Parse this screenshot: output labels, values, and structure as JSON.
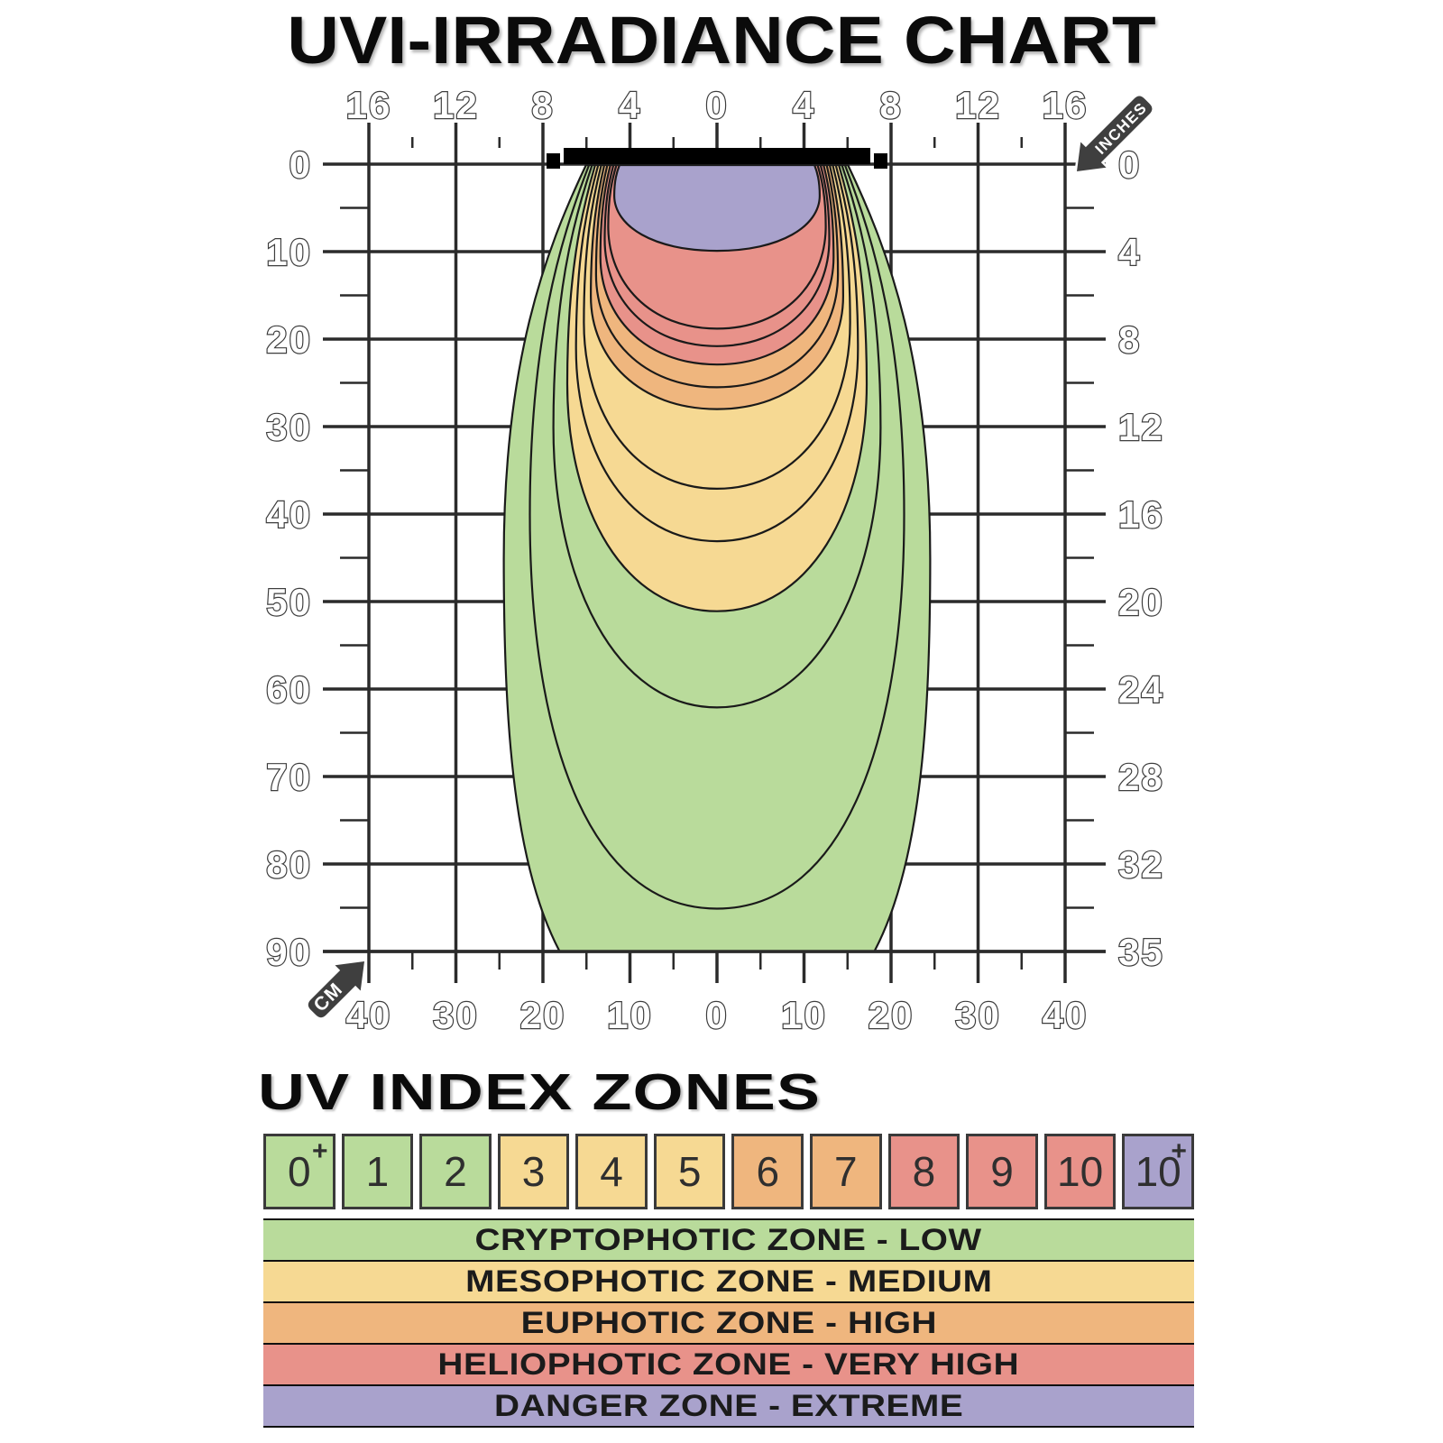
{
  "title": "UVI-IRRADIANCE CHART",
  "uv_zones_title": "UV INDEX ZONES",
  "axes": {
    "top_unit": "INCHES",
    "bottom_unit": "CM",
    "top_labels": [
      "16",
      "12",
      "8",
      "4",
      "0",
      "4",
      "8",
      "12",
      "16"
    ],
    "left_labels": [
      "0",
      "10",
      "20",
      "30",
      "40",
      "50",
      "60",
      "70",
      "80",
      "90"
    ],
    "right_labels": [
      "0",
      "4",
      "8",
      "12",
      "16",
      "20",
      "24",
      "28",
      "32",
      "35"
    ],
    "bottom_labels": [
      "40",
      "30",
      "20",
      "10",
      "0",
      "10",
      "20",
      "30",
      "40"
    ]
  },
  "uv_scale": [
    {
      "label": "0",
      "sup": "+",
      "zone": "low"
    },
    {
      "label": "1",
      "zone": "low"
    },
    {
      "label": "2",
      "zone": "low"
    },
    {
      "label": "3",
      "zone": "medium"
    },
    {
      "label": "4",
      "zone": "medium"
    },
    {
      "label": "5",
      "zone": "medium"
    },
    {
      "label": "6",
      "zone": "high"
    },
    {
      "label": "7",
      "zone": "high"
    },
    {
      "label": "8",
      "zone": "very_high"
    },
    {
      "label": "9",
      "zone": "very_high"
    },
    {
      "label": "10",
      "zone": "very_high"
    },
    {
      "label": "10",
      "sup": "+",
      "zone": "extreme"
    }
  ],
  "legend_rows": [
    {
      "label": "CRYPTOPHOTIC ZONE - LOW",
      "zone": "low"
    },
    {
      "label": "MESOPHOTIC ZONE - MEDIUM",
      "zone": "medium"
    },
    {
      "label": "EUPHOTIC ZONE - HIGH",
      "zone": "high"
    },
    {
      "label": "HELIOPHOTIC ZONE - VERY HIGH",
      "zone": "very_high"
    },
    {
      "label": "DANGER ZONE - EXTREME",
      "zone": "extreme"
    }
  ],
  "colors": {
    "low": "#b9db9b",
    "medium": "#f6d993",
    "high": "#efb67e",
    "very_high": "#e8928a",
    "extreme": "#a9a2cc",
    "grid": "#2b2b2b",
    "contour_stroke": "#1a1a1a",
    "lamp": "#000000",
    "arrow_bg": "#3f3f3f",
    "axis_label_stroke": "#3d3d3d",
    "axis_label_fill": "#ffffff"
  },
  "chart_data": {
    "type": "contour-irradiance",
    "title": "UVI-IRRADIANCE CHART",
    "x_axis": {
      "unit_top": "inches",
      "unit_bottom": "cm",
      "range_cm": [
        -40,
        40
      ],
      "major_step_cm": 10,
      "minor_step_cm": 5
    },
    "depth_axis": {
      "unit_left": "cm",
      "unit_right": "inches",
      "range_cm": [
        0,
        90
      ],
      "major_step_cm": 10,
      "minor_step_cm": 5
    },
    "grid": true,
    "lamp": {
      "span_cm": [
        -17.6,
        17.6
      ],
      "depth_cm": 0
    },
    "contours": [
      {
        "uvi": "0+",
        "zone": "low",
        "attach_halfwidth_cm": 15.05,
        "max_halfwidth_cm": 24.5,
        "depth_at_max_cm": 45,
        "bottom_depth_cm": 101,
        "bottom_flat": 0.88,
        "clipped_at_cm": 90
      },
      {
        "uvi": "1",
        "zone": "low",
        "attach_halfwidth_cm": 14.7,
        "max_halfwidth_cm": 21.5,
        "depth_at_max_cm": 40,
        "bottom_depth_cm": 85,
        "bottom_flat": 0.7
      },
      {
        "uvi": "2",
        "zone": "low",
        "attach_halfwidth_cm": 14.35,
        "max_halfwidth_cm": 18.8,
        "depth_at_max_cm": 30,
        "bottom_depth_cm": 62,
        "bottom_flat": 0.62
      },
      {
        "uvi": "3",
        "zone": "medium",
        "attach_halfwidth_cm": 14.0,
        "max_halfwidth_cm": 17.2,
        "depth_at_max_cm": 25,
        "bottom_depth_cm": 51,
        "bottom_flat": 0.62
      },
      {
        "uvi": "4",
        "zone": "medium",
        "attach_halfwidth_cm": 13.65,
        "max_halfwidth_cm": 16.2,
        "depth_at_max_cm": 21,
        "bottom_depth_cm": 43,
        "bottom_flat": 0.62
      },
      {
        "uvi": "5",
        "zone": "medium",
        "attach_halfwidth_cm": 13.3,
        "max_halfwidth_cm": 15.3,
        "depth_at_max_cm": 18,
        "bottom_depth_cm": 37,
        "bottom_flat": 0.62
      },
      {
        "uvi": "6",
        "zone": "high",
        "attach_halfwidth_cm": 12.95,
        "max_halfwidth_cm": 14.5,
        "depth_at_max_cm": 15,
        "bottom_depth_cm": 27.9,
        "bottom_flat": 0.62
      },
      {
        "uvi": "7",
        "zone": "high",
        "attach_halfwidth_cm": 12.6,
        "max_halfwidth_cm": 13.9,
        "depth_at_max_cm": 12.5,
        "bottom_depth_cm": 25.4,
        "bottom_flat": 0.62
      },
      {
        "uvi": "8",
        "zone": "very_high",
        "attach_halfwidth_cm": 12.25,
        "max_halfwidth_cm": 13.4,
        "depth_at_max_cm": 10.5,
        "bottom_depth_cm": 22.8,
        "bottom_flat": 0.62
      },
      {
        "uvi": "9",
        "zone": "very_high",
        "attach_halfwidth_cm": 11.9,
        "max_halfwidth_cm": 12.9,
        "depth_at_max_cm": 8.5,
        "bottom_depth_cm": 20.7,
        "bottom_flat": 0.62
      },
      {
        "uvi": "10",
        "zone": "very_high",
        "attach_halfwidth_cm": 11.55,
        "max_halfwidth_cm": 12.5,
        "depth_at_max_cm": 7,
        "bottom_depth_cm": 18.7,
        "bottom_flat": 0.62
      },
      {
        "uvi": "10+",
        "zone": "extreme",
        "attach_halfwidth_cm": 11.2,
        "max_halfwidth_cm": 11.8,
        "depth_at_max_cm": 3.5,
        "bottom_depth_cm": 9.8,
        "bottom_flat": 0.62
      }
    ]
  }
}
